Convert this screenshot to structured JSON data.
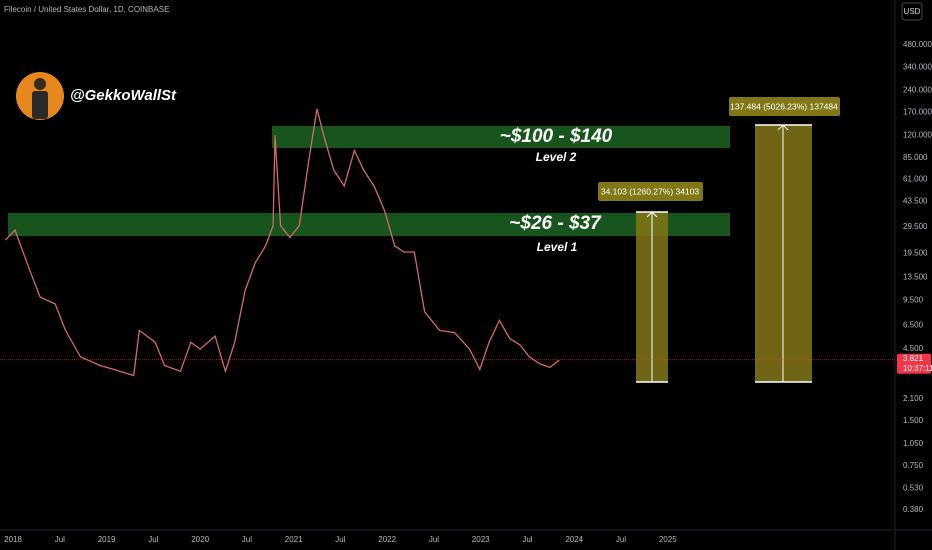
{
  "chart_data": {
    "type": "line",
    "title": "Filecoin / United States Dollar, 1D, COINBASE",
    "author": "@GekkoWallSt",
    "currency": "USD",
    "log_scale": true,
    "grid": false,
    "color": "#d46a6a",
    "last_price": 3.821,
    "last_price_color": "#f23645",
    "countdown": "10:37:11",
    "annotations": [
      "~$100 - $140",
      "Level 2",
      "~$26 - $37",
      "Level 1",
      "34.103 (1260.27%) 34103",
      "137.484 (5026.23%) 137484"
    ],
    "x": [
      2017.92,
      2018.02,
      2018.18,
      2018.29,
      2018.45,
      2018.56,
      2018.72,
      2018.93,
      2019.07,
      2019.29,
      2019.35,
      2019.52,
      2019.62,
      2019.79,
      2019.9,
      2020.0,
      2020.16,
      2020.27,
      2020.37,
      2020.48,
      2020.59,
      2020.7,
      2020.78,
      2020.8,
      2020.86,
      2020.96,
      2021.06,
      2021.16,
      2021.25,
      2021.32,
      2021.43,
      2021.54,
      2021.65,
      2021.75,
      2021.86,
      2021.97,
      2022.08,
      2022.18,
      2022.29,
      2022.4,
      2022.56,
      2022.72,
      2022.88,
      2022.99,
      2023.09,
      2023.2,
      2023.31,
      2023.42,
      2023.52,
      2023.63,
      2023.74,
      2023.84
    ],
    "values": [
      24,
      28,
      15,
      10,
      9,
      6,
      4,
      3.5,
      3.3,
      3.0,
      6,
      5,
      3.5,
      3.2,
      5,
      4.5,
      5.5,
      3.2,
      5,
      11,
      17,
      22,
      30,
      120,
      30,
      25,
      30,
      80,
      180,
      120,
      70,
      55,
      95,
      70,
      55,
      38,
      22,
      20,
      20,
      8,
      6,
      5.8,
      4.5,
      3.3,
      5,
      7,
      5.3,
      4.8,
      4.0,
      3.6,
      3.4,
      3.8
    ],
    "xlim": [
      2017.86,
      2027.43
    ],
    "xticks": [
      2018,
      {
        "value": 2018.5,
        "label": "Jul"
      },
      2019,
      {
        "value": 2019.5,
        "label": "Jul"
      },
      2020,
      {
        "value": 2020.5,
        "label": "Jul"
      },
      2021,
      {
        "value": 2021.5,
        "label": "Jul"
      },
      2022,
      {
        "value": 2022.5,
        "label": "Jul"
      },
      2023,
      {
        "value": 2023.5,
        "label": "Jul"
      },
      2024,
      {
        "value": 2024.5,
        "label": "Jul"
      },
      2025
    ],
    "ylim": [
      0.28,
      958
    ],
    "yticks": [
      {
        "value": 480,
        "label": "480.000"
      },
      {
        "value": 340,
        "label": "340.000"
      },
      {
        "value": 240,
        "label": "240.000"
      },
      {
        "value": 170,
        "label": "170.000"
      },
      {
        "value": 120,
        "label": "120.000"
      },
      {
        "value": 85,
        "label": "85.000"
      },
      {
        "value": 61,
        "label": "61.000"
      },
      {
        "value": 43.5,
        "label": "43.500"
      },
      {
        "value": 29.5,
        "label": "29.500"
      },
      {
        "value": 19.5,
        "label": "19.500"
      },
      {
        "value": 13.5,
        "label": "13.500"
      },
      {
        "value": 9.5,
        "label": "9.500"
      },
      {
        "value": 6.5,
        "label": "6.500"
      },
      {
        "value": 4.5,
        "label": "4.500"
      },
      {
        "value": 2.1,
        "label": "2.100"
      },
      {
        "value": 1.5,
        "label": "1.500"
      },
      {
        "value": 1.05,
        "label": "1.050"
      },
      {
        "value": 0.75,
        "label": "0.750"
      },
      {
        "value": 0.53,
        "label": "0.530"
      },
      {
        "value": 0.38,
        "label": "0.380"
      }
    ]
  }
}
